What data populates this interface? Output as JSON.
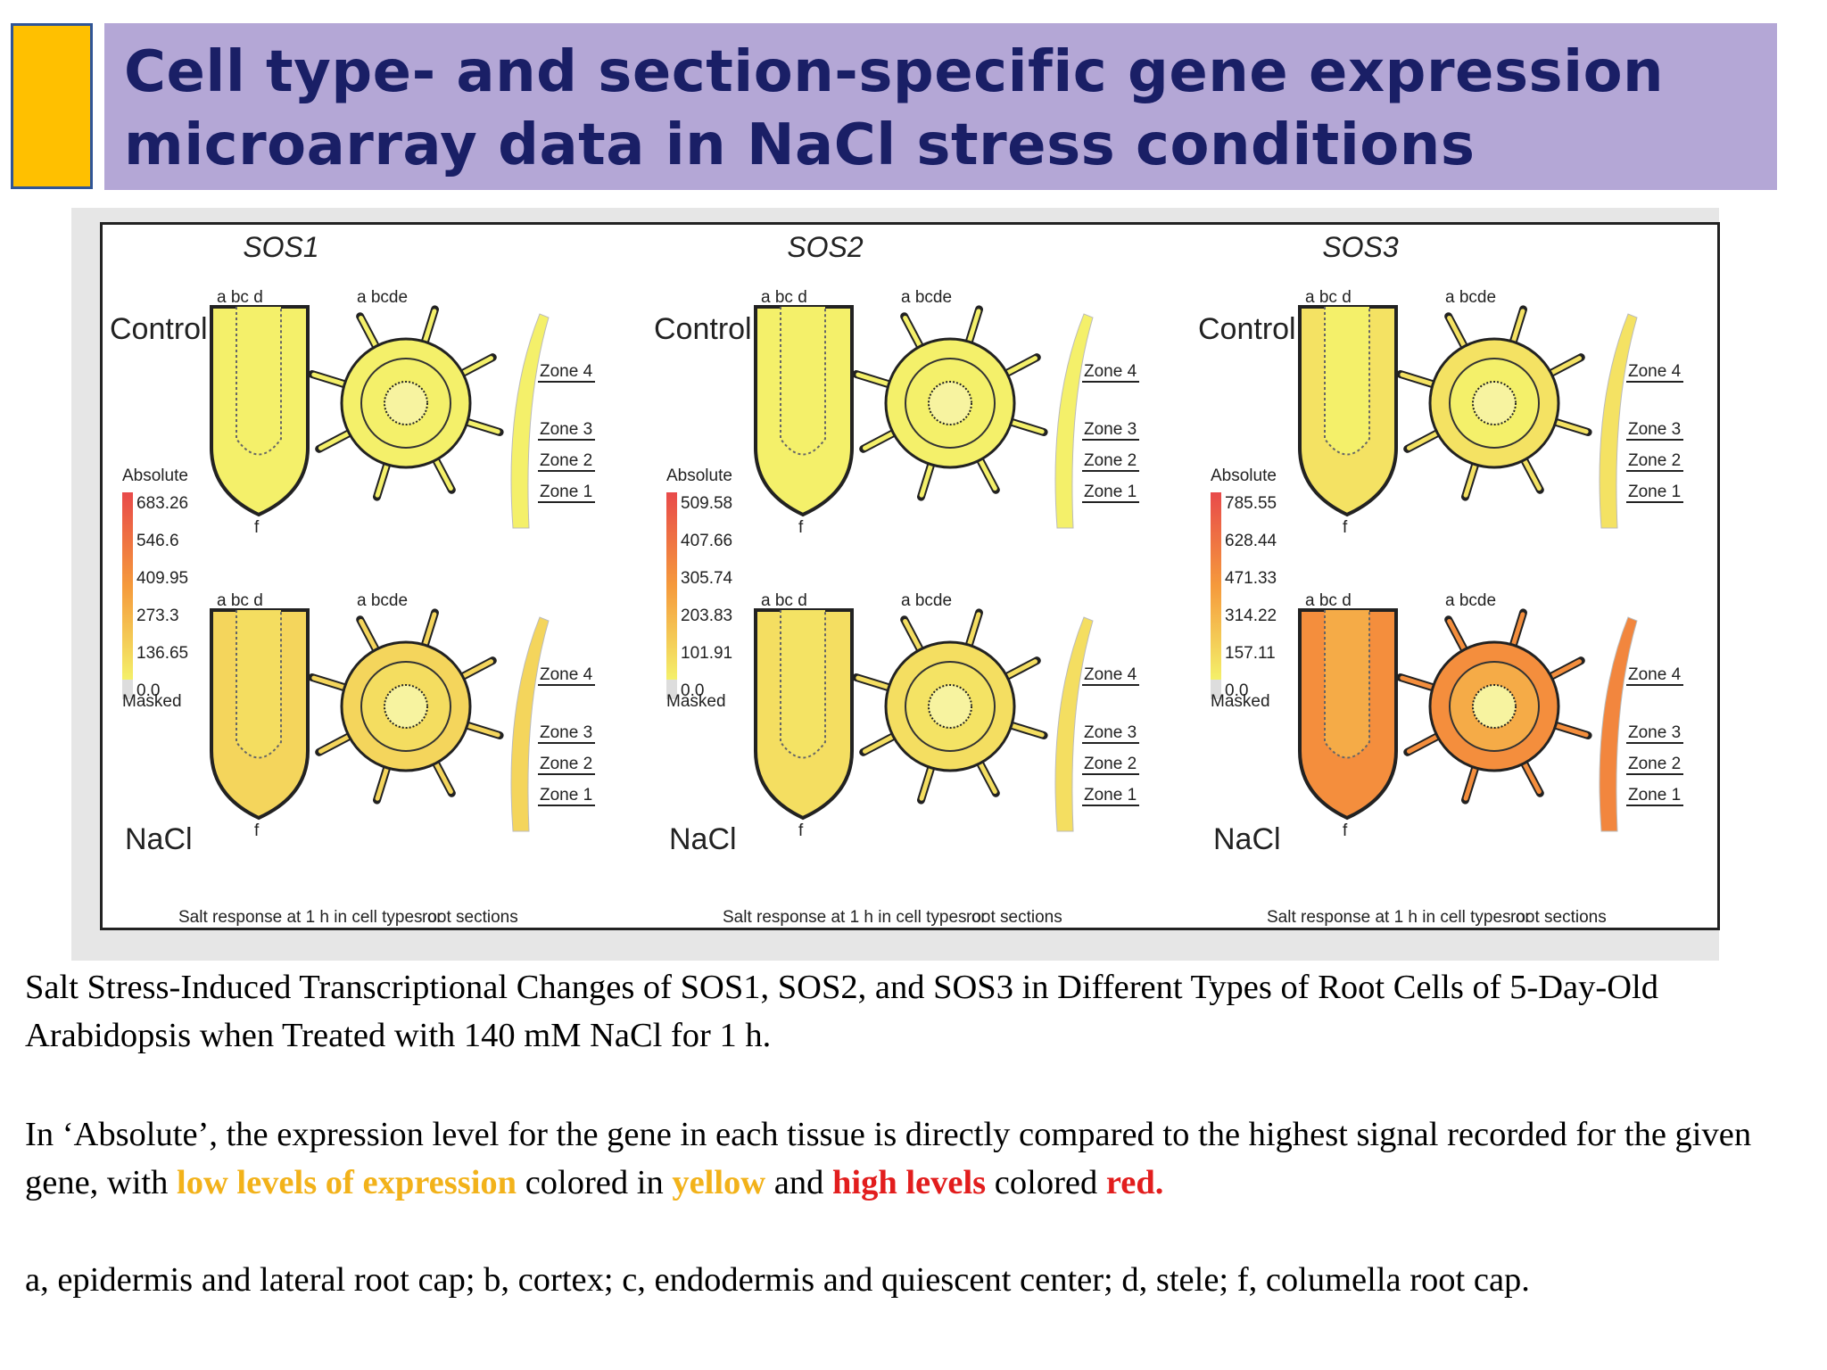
{
  "title": {
    "line1": "Cell type- and section-specific gene expression",
    "line2": "microarray data in NaCl stress conditions"
  },
  "figure": {
    "bottom_label": "Salt response at 1 h in cell types   or",
    "bottom_label_right": "root sections",
    "cell_labels_top": "a bc d",
    "cell_labels_cross": "a  bcde",
    "cell_label_f": "f",
    "legend_title": "Absolute",
    "legend_masked": "Masked",
    "condition_control": "Control",
    "condition_nacl": "NaCl",
    "zones": [
      "Zone 4",
      "Zone 3",
      "Zone 2",
      "Zone 1"
    ],
    "genes": [
      {
        "name": "SOS1",
        "legend_ticks": [
          "683.26",
          "546.6",
          "409.95",
          "273.3",
          "136.65",
          "0.0"
        ],
        "nacl_intensity": 0.15
      },
      {
        "name": "SOS2",
        "legend_ticks": [
          "509.58",
          "407.66",
          "305.74",
          "203.83",
          "101.91",
          "0.0"
        ],
        "nacl_intensity": 0.1
      },
      {
        "name": "SOS3",
        "legend_ticks": [
          "785.55",
          "628.44",
          "471.33",
          "314.22",
          "157.11",
          "0.0"
        ],
        "nacl_intensity": 0.55
      }
    ]
  },
  "colors": {
    "title_bg": "#b4a7d6",
    "title_text": "#1a1f66",
    "accent": "#ffc000",
    "low_expression": "#f2b21a",
    "high_expression": "#e21d1d",
    "tissue_yellow": "#f4f06a"
  },
  "caption": {
    "p1": "Salt Stress-Induced Transcriptional Changes of SOS1, SOS2, and SOS3 in Different Types of Root Cells of 5-Day-Old Arabidopsis when Treated with 140 mM NaCl for 1 h.",
    "p2_prefix": "In ‘Absolute’, the expression level for the gene in each tissue is directly compared to the highest signal recorded for the given gene, with ",
    "p2_low": "low levels of expression",
    "p2_mid1": " colored in ",
    "p2_yellow": "yellow",
    "p2_mid2": " and ",
    "p2_high": "high levels",
    "p2_mid3": " colored ",
    "p2_red": "red.",
    "p3": "a, epidermis and lateral root cap; b, cortex; c, endodermis and quiescent center; d, stele; f, columella root cap."
  }
}
